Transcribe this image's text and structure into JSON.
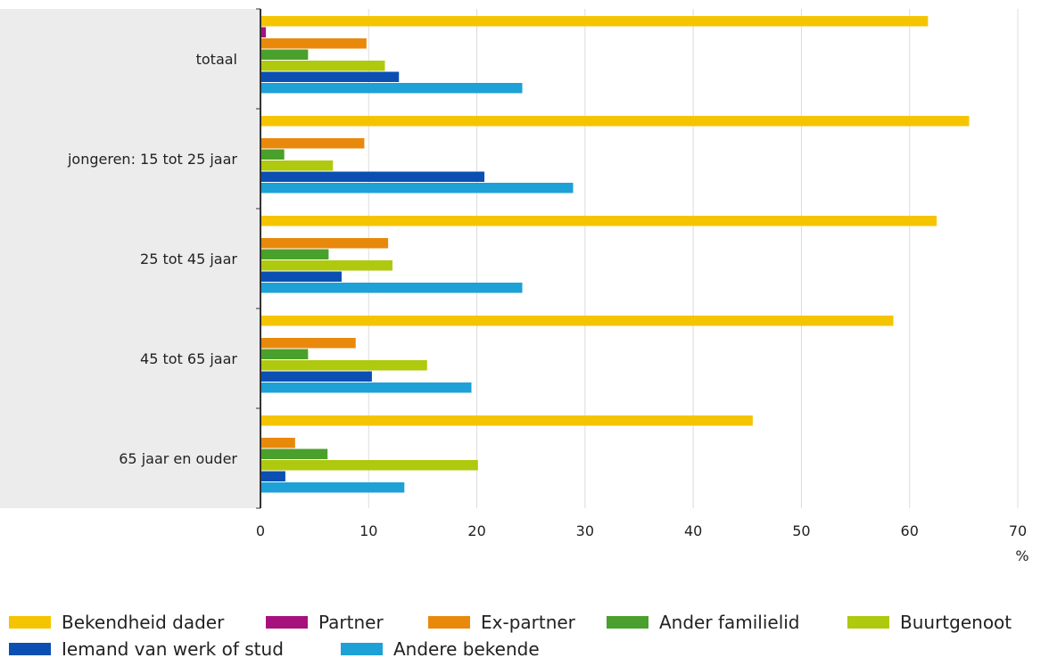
{
  "chart_data": {
    "type": "bar",
    "orientation": "horizontal",
    "categories": [
      "totaal",
      "jongeren: 15 tot 25 jaar",
      "25 tot 45 jaar",
      "45 tot 65 jaar",
      "65 jaar en ouder"
    ],
    "series": [
      {
        "name": "Bekendheid dader",
        "color": "#f5c400",
        "values": [
          61.7,
          65.5,
          62.5,
          58.5,
          45.5
        ]
      },
      {
        "name": "Partner",
        "color": "#a6117d",
        "values": [
          0.5,
          0,
          0,
          0,
          0
        ]
      },
      {
        "name": "Ex-partner",
        "color": "#e8890c",
        "values": [
          9.8,
          9.6,
          11.8,
          8.8,
          3.2
        ]
      },
      {
        "name": "Ander familielid",
        "color": "#4aa02c",
        "values": [
          4.4,
          2.2,
          6.3,
          4.4,
          6.2
        ]
      },
      {
        "name": "Buurtgenoot",
        "color": "#aec90e",
        "values": [
          11.5,
          6.7,
          12.2,
          15.4,
          20.1
        ]
      },
      {
        "name": "Iemand van werk of stud",
        "color": "#0b4fb3",
        "values": [
          12.8,
          20.7,
          7.5,
          10.3,
          2.3
        ]
      },
      {
        "name": "Andere bekende",
        "color": "#1da1d6",
        "values": [
          24.2,
          28.9,
          24.2,
          19.5,
          13.3
        ]
      }
    ],
    "x_ticks": [
      "0",
      "10",
      "20",
      "30",
      "40",
      "50",
      "60",
      "70"
    ],
    "xlim": [
      0,
      70
    ],
    "unit_label": "%",
    "grid": true,
    "legend_position": "bottom"
  }
}
